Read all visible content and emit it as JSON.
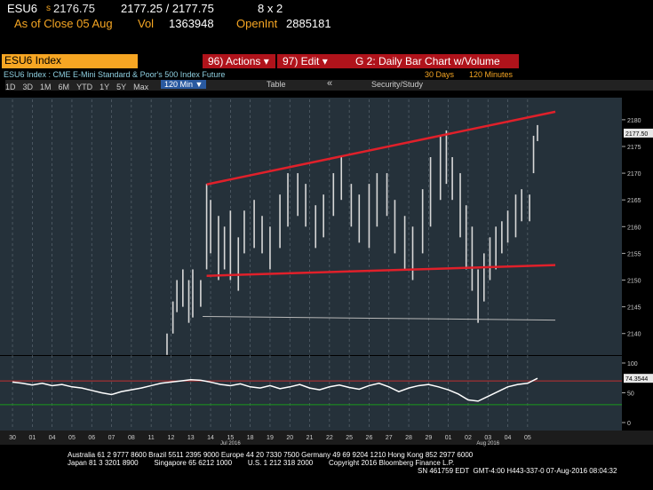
{
  "header": {
    "ticker": "ESU6",
    "prefix": "s",
    "last": "2176.75",
    "bid_ask": "2177.25 / 2177.75",
    "size": "8 x 2",
    "as_of": "As of Close 05 Aug",
    "vol_label": "Vol",
    "vol": "1363948",
    "oi_label": "OpenInt",
    "oi": "2885181"
  },
  "toolbar": {
    "security": "ESU6 Index",
    "actions": "96) Actions ▾",
    "edit": "97) Edit ▾",
    "page_title": "G 2: Daily Bar Chart w/Volume",
    "description": "ESU6 Index : CME E-Mini Standard & Poor's 500 Index Future",
    "range": "30 Days",
    "interval": "120 Minutes",
    "periods": [
      "1D",
      "3D",
      "1M",
      "6M",
      "YTD",
      "1Y",
      "5Y",
      "Max"
    ],
    "selected": "120 Min ▼",
    "table": "Table",
    "back": "«",
    "study": "Security/Study"
  },
  "chart_data": [
    {
      "type": "range-bar",
      "color": "#d8d8d8",
      "x": [
        7.8,
        8.1,
        8.3,
        8.6,
        8.9,
        9.1,
        9.5,
        9.8,
        10.0,
        10.4,
        10.7,
        11.0,
        11.4,
        11.7,
        12.2,
        12.6,
        13.0,
        13.5,
        13.9,
        14.4,
        14.8,
        15.3,
        15.7,
        16.2,
        16.6,
        17.1,
        17.5,
        18.0,
        18.4,
        18.9,
        19.3,
        19.8,
        20.2,
        20.7,
        21.1,
        21.6,
        21.9,
        22.2,
        22.6,
        22.9,
        23.2,
        23.5,
        23.8,
        24.1,
        24.4,
        24.7,
        25.0,
        25.4,
        25.7,
        26.1,
        26.3,
        26.5
      ],
      "high": [
        2140,
        2146,
        2150,
        2152,
        2150,
        2152,
        2150,
        2168,
        2165,
        2162,
        2160,
        2163,
        2158,
        2163,
        2165,
        2162,
        2160,
        2166,
        2170,
        2170,
        2168,
        2164,
        2166,
        2170,
        2173,
        2168,
        2166,
        2168,
        2170,
        2170,
        2165,
        2162,
        2160,
        2167,
        2173,
        2177,
        2178,
        2173,
        2170,
        2164,
        2160,
        2152,
        2155,
        2158,
        2160,
        2161,
        2163,
        2166,
        2167,
        2166,
        2177,
        2179
      ],
      "low": [
        2136,
        2140,
        2144,
        2145,
        2142,
        2143,
        2145,
        2152,
        2155,
        2150,
        2152,
        2150,
        2148,
        2155,
        2156,
        2155,
        2152,
        2156,
        2160,
        2162,
        2160,
        2156,
        2158,
        2162,
        2165,
        2160,
        2157,
        2156,
        2160,
        2162,
        2155,
        2152,
        2150,
        2155,
        2160,
        2165,
        2168,
        2165,
        2158,
        2152,
        2148,
        2142,
        2146,
        2150,
        2152,
        2155,
        2157,
        2158,
        2161,
        2161,
        2170,
        2176
      ],
      "xlim": [
        -0.63,
        30.76
      ],
      "ylim": [
        2136.3,
        2183.8
      ],
      "yticks": [
        2140,
        2145,
        2150,
        2155,
        2160,
        2165,
        2170,
        2175,
        2180
      ],
      "xticks": [
        {
          "value": 0,
          "label": "30"
        },
        {
          "value": 1,
          "label": "01"
        },
        {
          "value": 2,
          "label": "04"
        },
        {
          "value": 3,
          "label": "05"
        },
        {
          "value": 4,
          "label": "06"
        },
        {
          "value": 5,
          "label": "07"
        },
        {
          "value": 6,
          "label": "08"
        },
        {
          "value": 7,
          "label": "11"
        },
        {
          "value": 8,
          "label": "12"
        },
        {
          "value": 9,
          "label": "13"
        },
        {
          "value": 10,
          "label": "14"
        },
        {
          "value": 11,
          "label": "15"
        },
        {
          "value": 12,
          "label": "18"
        },
        {
          "value": 13,
          "label": "19"
        },
        {
          "value": 14,
          "label": "20"
        },
        {
          "value": 15,
          "label": "21"
        },
        {
          "value": 16,
          "label": "22"
        },
        {
          "value": 17,
          "label": "25"
        },
        {
          "value": 18,
          "label": "26"
        },
        {
          "value": 19,
          "label": "27"
        },
        {
          "value": 20,
          "label": "28"
        },
        {
          "value": 21,
          "label": "29"
        },
        {
          "value": 22,
          "label": "01"
        },
        {
          "value": 23,
          "label": "02"
        },
        {
          "value": 24,
          "label": "03"
        },
        {
          "value": 25,
          "label": "04"
        },
        {
          "value": 26,
          "label": "05"
        }
      ],
      "month_labels": [
        {
          "value": 11,
          "label": "Jul 2016"
        },
        {
          "value": 24,
          "label": "Aug 2016"
        }
      ],
      "trendlines": [
        {
          "color": "#e0202a",
          "x": [
            9.8,
            27.4
          ],
          "values": [
            2167.9,
            2181.5
          ]
        },
        {
          "color": "#e0202a",
          "x": [
            9.8,
            27.4
          ],
          "values": [
            2150.8,
            2152.8
          ]
        },
        {
          "color": "#b8b8b8",
          "x": [
            9.6,
            27.4
          ],
          "values": [
            2143.2,
            2142.5
          ]
        }
      ],
      "last_value": {
        "value": 2177.5,
        "label": "2177.50"
      }
    },
    {
      "type": "line",
      "color": "#ffffff",
      "xlim": [
        -0.63,
        30.76
      ],
      "ylim": [
        -11.9,
        110.4
      ],
      "yticks": [
        0,
        50,
        100
      ],
      "levels": [
        {
          "value": 70,
          "color": "#c03030"
        },
        {
          "value": 30,
          "color": "#1a9a1a"
        }
      ],
      "x": [
        0,
        0.5,
        1,
        1.5,
        2,
        2.5,
        3,
        3.5,
        4,
        4.5,
        5,
        5.5,
        6,
        6.5,
        7,
        7.5,
        8,
        8.5,
        9,
        9.5,
        10,
        10.5,
        11,
        11.5,
        12,
        12.5,
        13,
        13.5,
        14,
        14.5,
        15,
        15.5,
        16,
        16.5,
        17,
        17.5,
        18,
        18.5,
        19,
        19.5,
        20,
        20.5,
        21,
        21.5,
        22,
        22.5,
        23,
        23.5,
        24,
        24.5,
        25,
        25.5,
        26,
        26.5
      ],
      "values": [
        68,
        66,
        63,
        66,
        62,
        64,
        60,
        58,
        54,
        50,
        47,
        52,
        55,
        58,
        62,
        66,
        68,
        70,
        72,
        71,
        68,
        64,
        62,
        65,
        60,
        58,
        62,
        57,
        60,
        64,
        58,
        55,
        60,
        63,
        59,
        56,
        62,
        66,
        60,
        52,
        58,
        62,
        64,
        60,
        55,
        48,
        38,
        36,
        44,
        52,
        60,
        64,
        66,
        74.3544
      ],
      "last_value": 74.3544
    }
  ],
  "footer": {
    "lines": [
      "Australia 61 2 9777 8600 Brazil 5511 2395 9000 Europe 44 20 7330 7500 Germany 49 69 9204 1210 Hong Kong 852 2977 6000",
      "Japan 81 3 3201 8900        Singapore 65 6212 1000        U.S. 1 212 318 2000        Copyright 2016 Bloomberg Finance L.P.",
      "SN 461759 EDT  GMT-4:00 H443-337-0 07-Aug-2016 08:04:32"
    ]
  }
}
